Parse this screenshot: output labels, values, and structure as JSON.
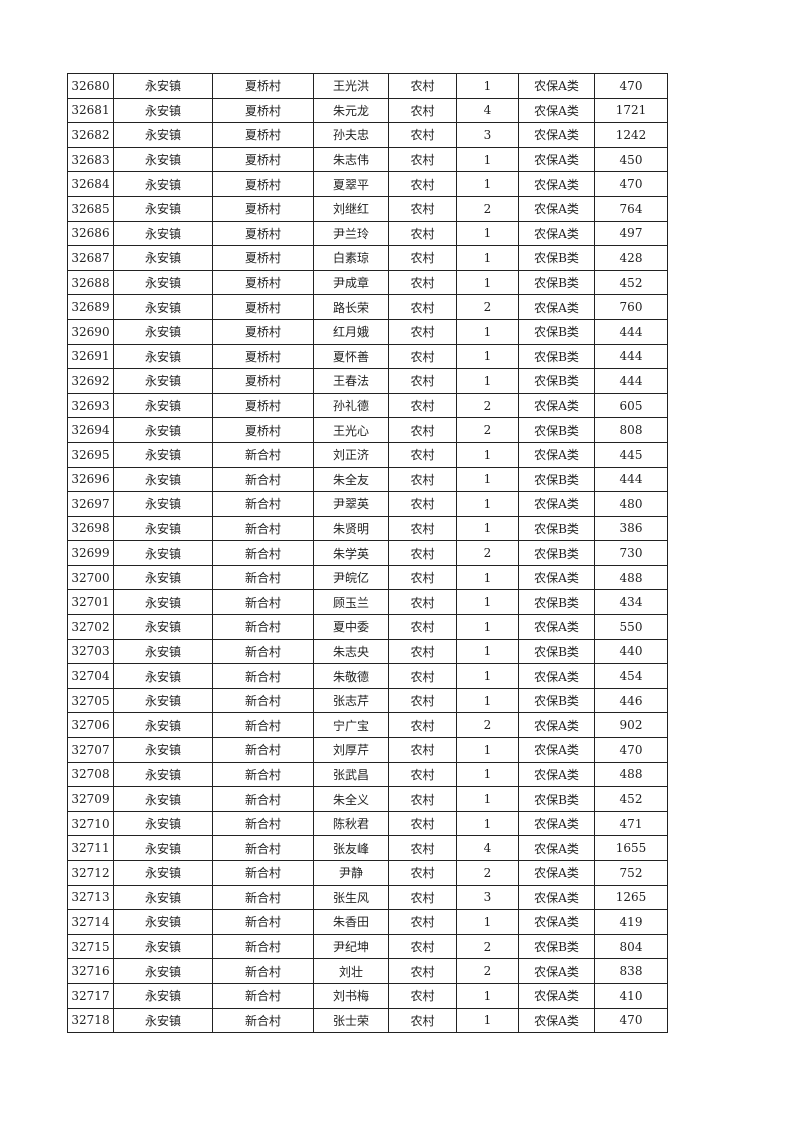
{
  "table": {
    "rows": [
      [
        "32680",
        "永安镇",
        "夏桥村",
        "王光洪",
        "农村",
        "1",
        "农保A类",
        "470"
      ],
      [
        "32681",
        "永安镇",
        "夏桥村",
        "朱元龙",
        "农村",
        "4",
        "农保A类",
        "1721"
      ],
      [
        "32682",
        "永安镇",
        "夏桥村",
        "孙夫忠",
        "农村",
        "3",
        "农保A类",
        "1242"
      ],
      [
        "32683",
        "永安镇",
        "夏桥村",
        "朱志伟",
        "农村",
        "1",
        "农保A类",
        "450"
      ],
      [
        "32684",
        "永安镇",
        "夏桥村",
        "夏翠平",
        "农村",
        "1",
        "农保A类",
        "470"
      ],
      [
        "32685",
        "永安镇",
        "夏桥村",
        "刘继红",
        "农村",
        "2",
        "农保A类",
        "764"
      ],
      [
        "32686",
        "永安镇",
        "夏桥村",
        "尹兰玲",
        "农村",
        "1",
        "农保A类",
        "497"
      ],
      [
        "32687",
        "永安镇",
        "夏桥村",
        "白素琼",
        "农村",
        "1",
        "农保B类",
        "428"
      ],
      [
        "32688",
        "永安镇",
        "夏桥村",
        "尹成章",
        "农村",
        "1",
        "农保B类",
        "452"
      ],
      [
        "32689",
        "永安镇",
        "夏桥村",
        "路长荣",
        "农村",
        "2",
        "农保A类",
        "760"
      ],
      [
        "32690",
        "永安镇",
        "夏桥村",
        "红月娥",
        "农村",
        "1",
        "农保B类",
        "444"
      ],
      [
        "32691",
        "永安镇",
        "夏桥村",
        "夏怀善",
        "农村",
        "1",
        "农保B类",
        "444"
      ],
      [
        "32692",
        "永安镇",
        "夏桥村",
        "王春法",
        "农村",
        "1",
        "农保B类",
        "444"
      ],
      [
        "32693",
        "永安镇",
        "夏桥村",
        "孙礼德",
        "农村",
        "2",
        "农保A类",
        "605"
      ],
      [
        "32694",
        "永安镇",
        "夏桥村",
        "王光心",
        "农村",
        "2",
        "农保B类",
        "808"
      ],
      [
        "32695",
        "永安镇",
        "新合村",
        "刘正济",
        "农村",
        "1",
        "农保A类",
        "445"
      ],
      [
        "32696",
        "永安镇",
        "新合村",
        "朱全友",
        "农村",
        "1",
        "农保B类",
        "444"
      ],
      [
        "32697",
        "永安镇",
        "新合村",
        "尹翠英",
        "农村",
        "1",
        "农保A类",
        "480"
      ],
      [
        "32698",
        "永安镇",
        "新合村",
        "朱贤明",
        "农村",
        "1",
        "农保B类",
        "386"
      ],
      [
        "32699",
        "永安镇",
        "新合村",
        "朱学英",
        "农村",
        "2",
        "农保B类",
        "730"
      ],
      [
        "32700",
        "永安镇",
        "新合村",
        "尹皖亿",
        "农村",
        "1",
        "农保A类",
        "488"
      ],
      [
        "32701",
        "永安镇",
        "新合村",
        "顾玉兰",
        "农村",
        "1",
        "农保B类",
        "434"
      ],
      [
        "32702",
        "永安镇",
        "新合村",
        "夏中委",
        "农村",
        "1",
        "农保A类",
        "550"
      ],
      [
        "32703",
        "永安镇",
        "新合村",
        "朱志央",
        "农村",
        "1",
        "农保B类",
        "440"
      ],
      [
        "32704",
        "永安镇",
        "新合村",
        "朱敬德",
        "农村",
        "1",
        "农保A类",
        "454"
      ],
      [
        "32705",
        "永安镇",
        "新合村",
        "张志芹",
        "农村",
        "1",
        "农保B类",
        "446"
      ],
      [
        "32706",
        "永安镇",
        "新合村",
        "宁广宝",
        "农村",
        "2",
        "农保A类",
        "902"
      ],
      [
        "32707",
        "永安镇",
        "新合村",
        "刘厚芹",
        "农村",
        "1",
        "农保A类",
        "470"
      ],
      [
        "32708",
        "永安镇",
        "新合村",
        "张武昌",
        "农村",
        "1",
        "农保A类",
        "488"
      ],
      [
        "32709",
        "永安镇",
        "新合村",
        "朱全义",
        "农村",
        "1",
        "农保B类",
        "452"
      ],
      [
        "32710",
        "永安镇",
        "新合村",
        "陈秋君",
        "农村",
        "1",
        "农保A类",
        "471"
      ],
      [
        "32711",
        "永安镇",
        "新合村",
        "张友峰",
        "农村",
        "4",
        "农保A类",
        "1655"
      ],
      [
        "32712",
        "永安镇",
        "新合村",
        "尹静",
        "农村",
        "2",
        "农保A类",
        "752"
      ],
      [
        "32713",
        "永安镇",
        "新合村",
        "张生风",
        "农村",
        "3",
        "农保A类",
        "1265"
      ],
      [
        "32714",
        "永安镇",
        "新合村",
        "朱香田",
        "农村",
        "1",
        "农保A类",
        "419"
      ],
      [
        "32715",
        "永安镇",
        "新合村",
        "尹纪坤",
        "农村",
        "2",
        "农保B类",
        "804"
      ],
      [
        "32716",
        "永安镇",
        "新合村",
        "刘壮",
        "农村",
        "2",
        "农保A类",
        "838"
      ],
      [
        "32717",
        "永安镇",
        "新合村",
        "刘书梅",
        "农村",
        "1",
        "农保A类",
        "410"
      ],
      [
        "32718",
        "永安镇",
        "新合村",
        "张士荣",
        "农村",
        "1",
        "农保A类",
        "470"
      ]
    ]
  }
}
